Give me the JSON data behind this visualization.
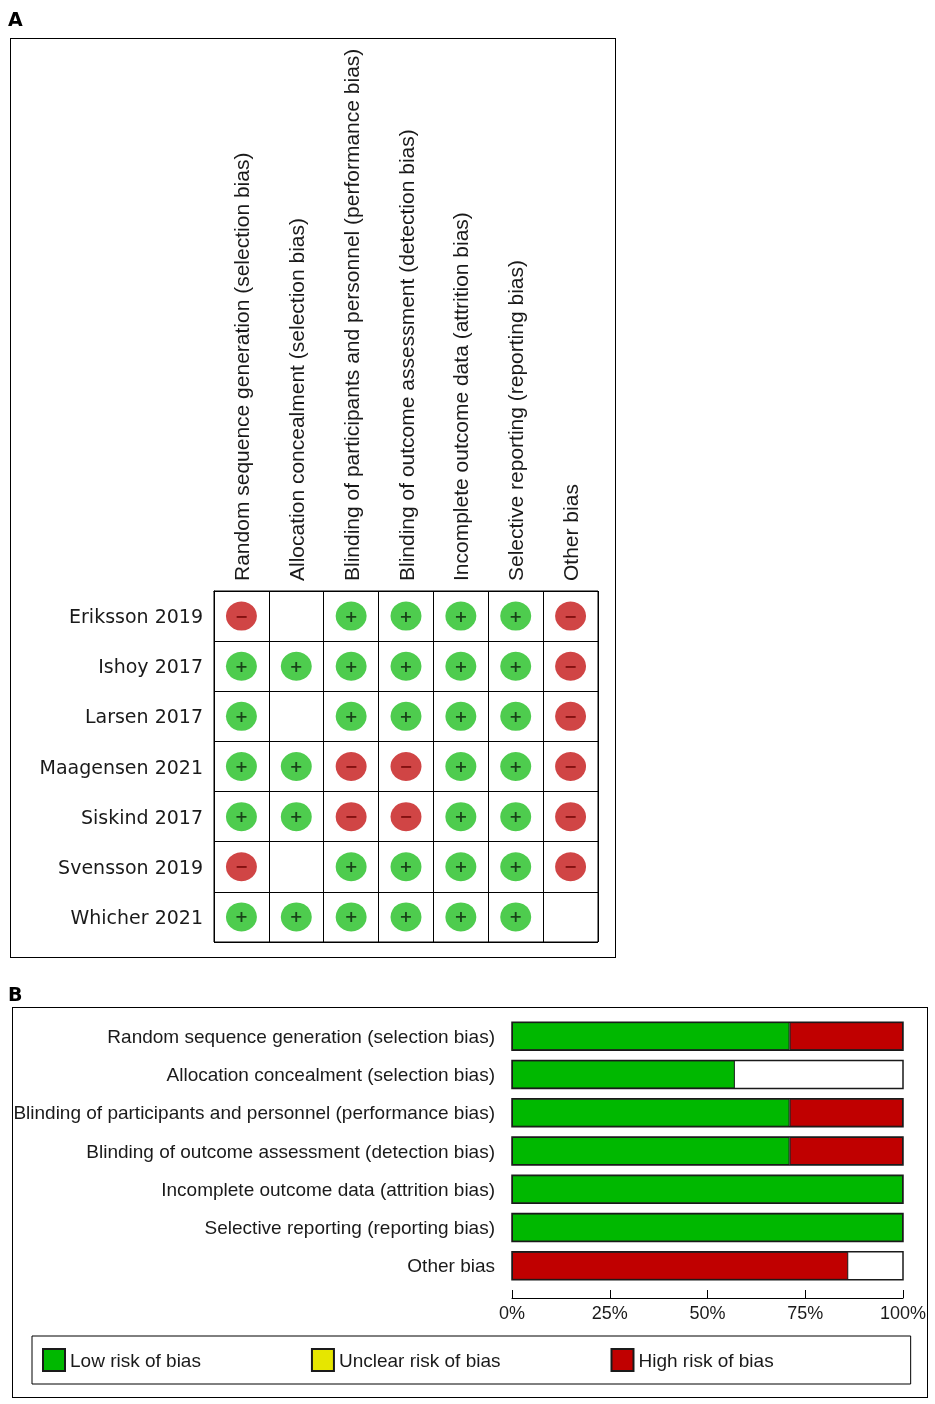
{
  "chart_data": [
    {
      "type": "heatmap",
      "title": "A",
      "categories": [
        "Random sequence generation (selection bias)",
        "Allocation concealment (selection bias)",
        "Blinding of participants and personnel (performance bias)",
        "Blinding of outcome assessment (detection bias)",
        "Incomplete outcome data (attrition bias)",
        "Selective reporting (reporting bias)",
        "Other bias"
      ],
      "y_categories": [
        "Eriksson 2019",
        "Ishoy 2017",
        "Larsen 2017",
        "Maagensen 2021",
        "Siskind 2017",
        "Svensson 2019",
        "Whicher 2021"
      ],
      "cells": [
        [
          "−",
          null,
          "+",
          "+",
          "+",
          "+",
          "−"
        ],
        [
          "+",
          "+",
          "+",
          "+",
          "+",
          "+",
          "−"
        ],
        [
          "+",
          null,
          "+",
          "+",
          "+",
          "+",
          "−"
        ],
        [
          "+",
          "+",
          "−",
          "−",
          "+",
          "+",
          "−"
        ],
        [
          "+",
          "+",
          "−",
          "−",
          "+",
          "+",
          "−"
        ],
        [
          "−",
          null,
          "+",
          "+",
          "+",
          "+",
          "−"
        ],
        [
          "+",
          "+",
          "+",
          "+",
          "+",
          "+",
          null
        ]
      ],
      "grid": true
    },
    {
      "type": "bar",
      "title": "B",
      "orientation": "horizontal",
      "stacked": true,
      "categories": [
        "Random sequence generation (selection bias)",
        "Allocation concealment (selection bias)",
        "Blinding of participants and personnel (performance bias)",
        "Blinding of outcome assessment (detection bias)",
        "Incomplete outcome data (attrition bias)",
        "Selective reporting (reporting bias)",
        "Other bias"
      ],
      "series": [
        {
          "name": "Low risk of bias",
          "color": "#00b800",
          "values": [
            71,
            57,
            71,
            71,
            100,
            100,
            0
          ]
        },
        {
          "name": "Unclear risk of bias",
          "color": "#e6e600",
          "values": [
            0,
            0,
            0,
            0,
            0,
            0,
            0
          ]
        },
        {
          "name": "High risk of bias",
          "color": "#c00000",
          "values": [
            29,
            0,
            29,
            29,
            0,
            0,
            86
          ]
        }
      ],
      "xlim": [
        0,
        100
      ],
      "xticks": [
        {
          "value": 0,
          "label": "0%"
        },
        {
          "value": 25,
          "label": "25%"
        },
        {
          "value": 50,
          "label": "50%"
        },
        {
          "value": 75,
          "label": "75%"
        },
        {
          "value": 100,
          "label": "100%"
        }
      ],
      "legend": "bottom",
      "grid": false
    }
  ]
}
